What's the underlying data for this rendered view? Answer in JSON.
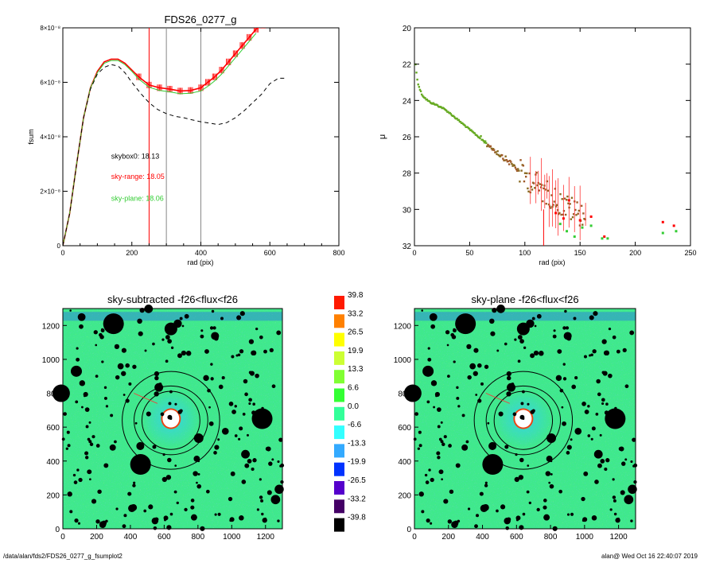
{
  "footer": {
    "path": "/data/alan/fds2/FDS26_0277_g_fsumplot2",
    "stamp": "alan@  Wed Oct 16 22:40:07 2019"
  },
  "colors": {
    "red": "#ff0000",
    "green": "#33cc33",
    "olive": "#8a6a22",
    "black": "#000000",
    "grey": "#888888"
  },
  "chart_data": [
    {
      "id": "fsum",
      "type": "line",
      "title": "FDS26_0277_g",
      "xlabel": "rad (pix)",
      "ylabel": "fsum",
      "xlim": [
        0,
        800
      ],
      "ylim": [
        0,
        8e-08
      ],
      "xticks": [
        0,
        200,
        400,
        600,
        800
      ],
      "yticks": [
        0,
        2e-08,
        4e-08,
        6e-08,
        8e-08
      ],
      "ytick_labels": [
        "0",
        "2×10⁻⁸",
        "4×10⁻⁸",
        "6×10⁻⁸",
        "8×10⁻⁸"
      ],
      "vlines": [
        {
          "x": 250,
          "color": "#ff0000"
        },
        {
          "x": 300,
          "color": "#888888"
        },
        {
          "x": 400,
          "color": "#888888"
        }
      ],
      "annotations": [
        {
          "text": "skybox0: 18.13",
          "color": "#000000",
          "x": 140,
          "y": 3.2e-08
        },
        {
          "text": "sky-range: 18.05",
          "color": "#ff0000",
          "x": 140,
          "y": 2.45e-08
        },
        {
          "text": "sky-plane: 18.06",
          "color": "#33cc33",
          "x": 140,
          "y": 1.65e-08
        }
      ],
      "series": [
        {
          "color": "#ff0000",
          "x": [
            0,
            20,
            40,
            60,
            80,
            100,
            120,
            140,
            160,
            180,
            200,
            220,
            250,
            280,
            310,
            340,
            370,
            400,
            420,
            440,
            460,
            480,
            500,
            520,
            540,
            560,
            580
          ],
          "y": [
            0,
            1.2e-08,
            3e-08,
            4.7e-08,
            5.8e-08,
            6.4e-08,
            6.75e-08,
            6.85e-08,
            6.85e-08,
            6.7e-08,
            6.45e-08,
            6.2e-08,
            5.9e-08,
            5.8e-08,
            5.75e-08,
            5.68e-08,
            5.7e-08,
            5.8e-08,
            6e-08,
            6.2e-08,
            6.45e-08,
            6.75e-08,
            7.05e-08,
            7.35e-08,
            7.65e-08,
            7.95e-08,
            8.1e-08
          ]
        },
        {
          "color": "#33cc33",
          "x": [
            0,
            20,
            40,
            60,
            80,
            100,
            120,
            140,
            160,
            180,
            200,
            220,
            250,
            280,
            310,
            340,
            370,
            400,
            420,
            440,
            460,
            480,
            500,
            520,
            540,
            560
          ],
          "y": [
            0,
            1.2e-08,
            3e-08,
            4.7e-08,
            5.8e-08,
            6.35e-08,
            6.7e-08,
            6.8e-08,
            6.8e-08,
            6.65e-08,
            6.4e-08,
            6.12e-08,
            5.82e-08,
            5.7e-08,
            5.65e-08,
            5.58e-08,
            5.6e-08,
            5.68e-08,
            5.85e-08,
            6.05e-08,
            6.3e-08,
            6.6e-08,
            6.9e-08,
            7.2e-08,
            7.5e-08,
            7.8e-08
          ]
        },
        {
          "color": "#000000",
          "dashed": true,
          "x": [
            0,
            20,
            40,
            60,
            80,
            100,
            120,
            140,
            160,
            180,
            200,
            225,
            250,
            275,
            300,
            325,
            350,
            375,
            400,
            425,
            450,
            475,
            500,
            525,
            550,
            575,
            600,
            625,
            650
          ],
          "y": [
            0,
            1.2e-08,
            3e-08,
            4.7e-08,
            5.75e-08,
            6.3e-08,
            6.55e-08,
            6.65e-08,
            6.6e-08,
            6.35e-08,
            6e-08,
            5.6e-08,
            5.25e-08,
            5e-08,
            4.85e-08,
            4.75e-08,
            4.7e-08,
            4.62e-08,
            4.55e-08,
            4.5e-08,
            4.45e-08,
            4.52e-08,
            4.7e-08,
            4.95e-08,
            5.25e-08,
            5.55e-08,
            5.95e-08,
            6.15e-08,
            6.15e-08
          ]
        }
      ]
    },
    {
      "id": "mu",
      "type": "scatter",
      "xlabel": "rad (pix)",
      "ylabel": "μ",
      "xlim": [
        0,
        250
      ],
      "ylim": [
        32,
        20
      ],
      "xticks": [
        0,
        50,
        100,
        150,
        200,
        250
      ],
      "yticks": [
        20,
        22,
        24,
        26,
        28,
        30,
        32
      ],
      "profile": {
        "color": "#8a6a22",
        "x": [
          1,
          2,
          3,
          5,
          7,
          10,
          13,
          16,
          20,
          25,
          30,
          35,
          40,
          45,
          50,
          55,
          60,
          65,
          70,
          75,
          80,
          85,
          90,
          95,
          100,
          105,
          110,
          115,
          120,
          125,
          130,
          135,
          140,
          145,
          150,
          155
        ],
        "y": [
          22.0,
          22.6,
          23.0,
          23.4,
          23.7,
          23.9,
          24.05,
          24.15,
          24.25,
          24.4,
          24.6,
          24.85,
          25.1,
          25.35,
          25.6,
          25.85,
          26.1,
          26.35,
          26.6,
          26.85,
          27.1,
          27.35,
          27.6,
          27.9,
          28.2,
          28.4,
          28.6,
          28.9,
          29.1,
          29.3,
          29.6,
          29.8,
          29.9,
          30.1,
          30.2,
          30.3
        ]
      },
      "outer_red": {
        "color": "#ff0000",
        "x": [
          128,
          135,
          140,
          150,
          160,
          172,
          225,
          235
        ],
        "y": [
          30.2,
          30.5,
          29.5,
          30.6,
          30.4,
          31.5,
          30.7,
          30.9
        ]
      },
      "outer_green": {
        "color": "#33cc33",
        "x": [
          132,
          138,
          145,
          152,
          160,
          170,
          175,
          225,
          237
        ],
        "y": [
          30.8,
          31.2,
          31.5,
          31.0,
          30.9,
          31.6,
          31.6,
          31.3,
          31.2
        ]
      },
      "errbar_x": [
        105,
        110,
        112,
        115,
        118,
        120,
        122,
        125,
        128,
        130,
        135,
        140,
        145,
        150,
        155
      ]
    },
    {
      "id": "sky-subtracted",
      "type": "heatmap",
      "title": "sky-subtracted -f26<flux<f26",
      "xlim": [
        0,
        1300
      ],
      "ylim": [
        0,
        1300
      ],
      "xticks": [
        0,
        200,
        400,
        600,
        800,
        1000,
        1200
      ],
      "yticks": [
        0,
        200,
        400,
        600,
        800,
        1000,
        1200
      ]
    },
    {
      "id": "sky-plane",
      "type": "heatmap",
      "title": "sky-plane -f26<flux<f26",
      "xlim": [
        0,
        1300
      ],
      "ylim": [
        0,
        1300
      ],
      "xticks": [
        0,
        200,
        400,
        600,
        800,
        1000,
        1200
      ],
      "yticks": [
        0,
        200,
        400,
        600,
        800,
        1000,
        1200
      ]
    }
  ],
  "colorbar": {
    "labels": [
      "39.8",
      "33.2",
      "26.5",
      "19.9",
      "13.3",
      "6.6",
      "0.0",
      "-6.6",
      "-13.3",
      "-19.9",
      "-26.5",
      "-33.2",
      "-39.8"
    ],
    "colors": [
      "#ff1a00",
      "#ff8000",
      "#ffff00",
      "#ccff33",
      "#80ff33",
      "#33ff33",
      "#33ff99",
      "#33ffff",
      "#33aaff",
      "#0033ff",
      "#5500cc",
      "#440066",
      "#000000"
    ]
  }
}
